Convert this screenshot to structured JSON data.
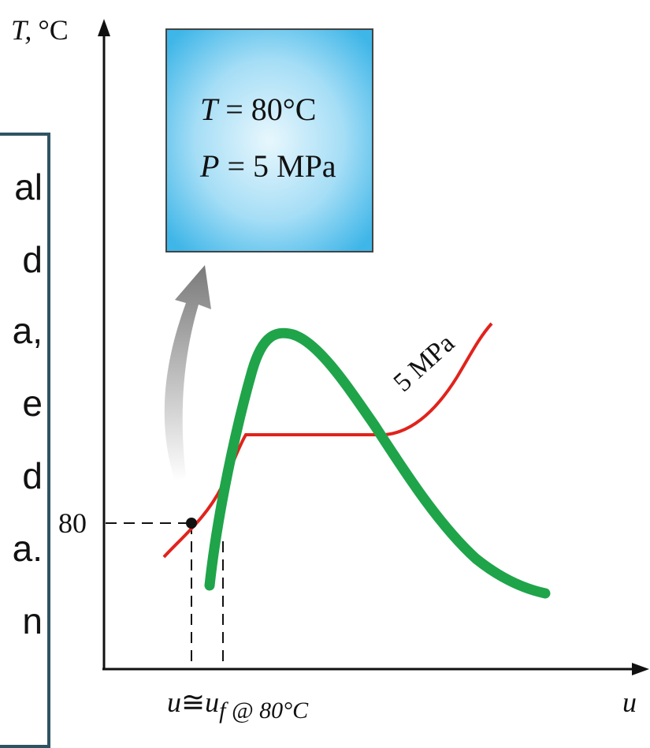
{
  "axes": {
    "y_label_var": "T,",
    "y_label_unit": "°C",
    "x_label": "u",
    "y_tick": "80",
    "x_tick_lhs": "u",
    "x_tick_approx": "≅",
    "x_tick_rhs": "u",
    "x_tick_sub": "f @ 80°C"
  },
  "curve_label": "5 MPa",
  "state_box": {
    "line1_var": "T",
    "line1_rest": " = 80°C",
    "line2_var": "P",
    "line2_rest": " = 5 MPa"
  },
  "side_text_fragments": [
    "al",
    "d",
    "a,",
    "e",
    "d",
    "a.",
    "n"
  ],
  "colors": {
    "saturation_dome": "#1fa44a",
    "isobar": "#e0231c",
    "panel_border": "#2e5463",
    "box_fill": "#5cc4ee",
    "arrow": "#808080"
  }
}
